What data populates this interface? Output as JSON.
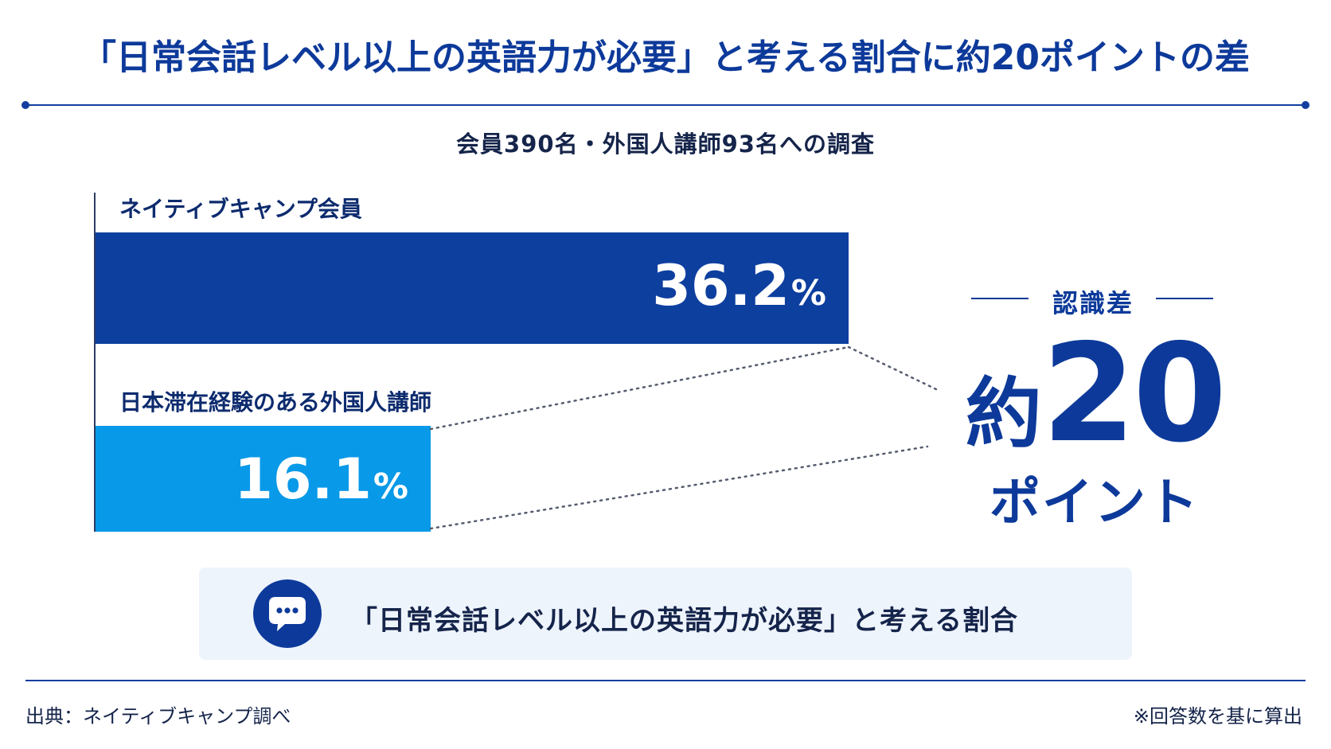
{
  "title": "「日常会話レベル以上の英語力が必要」と考える割合に約20ポイントの差",
  "subtitle": "会員390名・外国人講師93名への調査",
  "colors": {
    "series_1": "#0d3f9f",
    "series_2": "#0899e8",
    "accent": "#0d3a9a",
    "note_bg": "#eef4fc"
  },
  "chart_data": {
    "type": "bar",
    "orientation": "horizontal",
    "categories": [
      "ネイティブキャンプ会員",
      "日本滞在経験のある外国人講師"
    ],
    "values": [
      36.2,
      16.1
    ],
    "value_labels": [
      "36.2",
      "16.1"
    ],
    "value_unit": "%",
    "xlim": [
      0,
      40
    ],
    "grid": false,
    "annotation": {
      "label": "認識差",
      "prefix": "約",
      "value": "20",
      "unit": "ポイント"
    }
  },
  "note": {
    "icon": "chat-bubble-icon",
    "text": "「日常会話レベル以上の英語力が必要」と考える割合"
  },
  "source": "出典：ネイティブキャンプ調べ",
  "footnote": "※回答数を基に算出"
}
